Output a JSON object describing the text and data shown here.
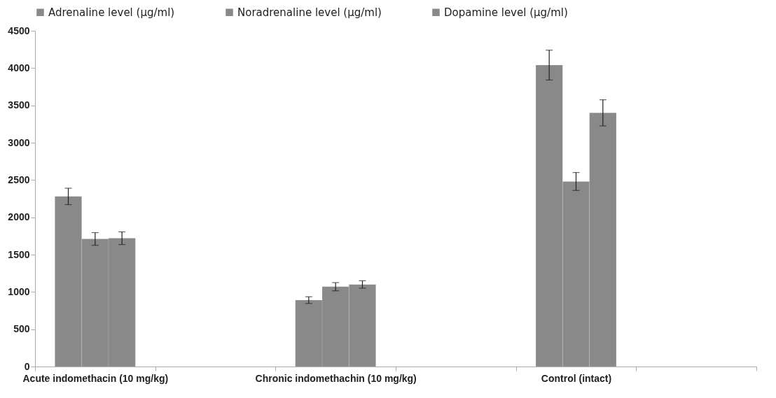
{
  "chart_data": {
    "type": "bar",
    "categories": [
      "Acute indomethacin (10 mg/kg)",
      null,
      "Chronic indomethachin (10 mg/kg)",
      null,
      "Control (intact)",
      null
    ],
    "series": [
      {
        "name": "Adrenaline level (µg/ml)",
        "color": "#898989",
        "values": [
          2280,
          null,
          890,
          null,
          4040,
          null
        ],
        "errors": [
          110,
          null,
          45,
          null,
          200,
          null
        ]
      },
      {
        "name": "Noradrenaline level (µg/ml)",
        "color": "#898989",
        "values": [
          1710,
          null,
          1070,
          null,
          2480,
          null
        ],
        "errors": [
          85,
          null,
          55,
          null,
          120,
          null
        ]
      },
      {
        "name": "Dopamine level (µg/ml)",
        "color": "#898989",
        "values": [
          1720,
          null,
          1100,
          null,
          3400,
          null
        ],
        "errors": [
          85,
          null,
          50,
          null,
          175,
          null
        ]
      }
    ],
    "ylim": [
      0,
      4500
    ],
    "yticks": [
      0,
      500,
      1000,
      1500,
      2000,
      2500,
      3000,
      3500,
      4000,
      4500
    ],
    "grid": false,
    "legend": "top"
  }
}
